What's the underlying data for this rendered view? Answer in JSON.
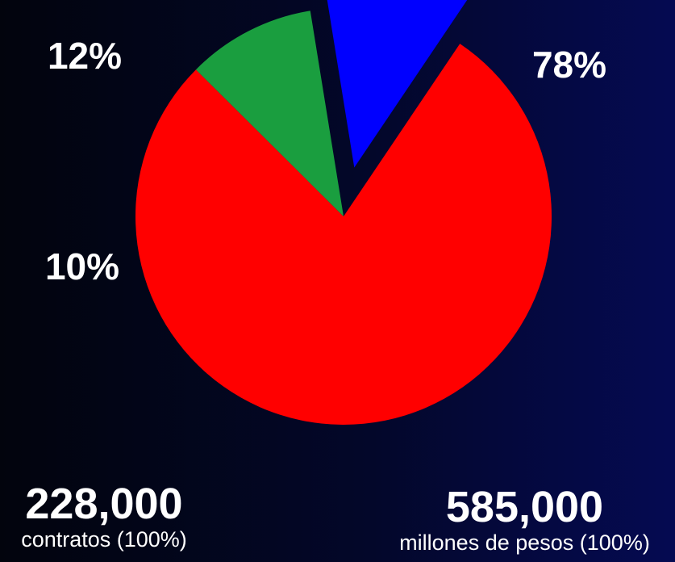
{
  "chart_data": {
    "type": "pie",
    "exploded": "12%",
    "slices": [
      {
        "label": "78%",
        "value": 78,
        "color": "#ff0000"
      },
      {
        "label": "10%",
        "value": 10,
        "color": "#1a9e3f"
      },
      {
        "label": "12%",
        "value": 12,
        "color": "#0000ff"
      }
    ]
  },
  "stats": {
    "left": {
      "number": "228,000",
      "caption": "contratos (100%)"
    },
    "right": {
      "number": "585,000",
      "caption": "millones de pesos (100%)"
    }
  }
}
